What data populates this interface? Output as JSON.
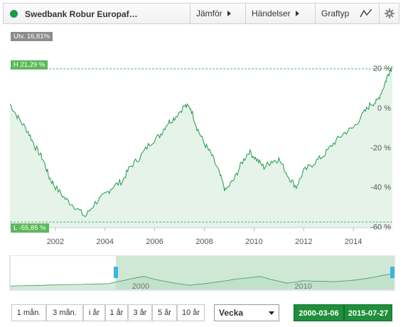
{
  "header": {
    "fund_name": "Swedbank Robur Europaf…",
    "compare_label": "Jämför",
    "events_label": "Händelser",
    "graphtype_label": "Graftyp",
    "accent_color": "#1e9a4a"
  },
  "tags": {
    "change": "Utv. 16,81%",
    "high": "H 21,29 %",
    "low": "L -55,85 %"
  },
  "chart_data": {
    "type": "area",
    "x_ticks": [
      "2002",
      "2004",
      "2006",
      "2008",
      "2010",
      "2012",
      "2014"
    ],
    "y_ticks": [
      "20 %",
      "0 %",
      "-20 %",
      "-40 %",
      "-60 %"
    ],
    "ylim": [
      -60,
      20
    ],
    "grid": false,
    "high_line": 21.29,
    "low_line": -55.85,
    "series": [
      {
        "color": "#1e9a4a",
        "x": [
          2000.17,
          2000.5,
          2000.9,
          2001.2,
          2001.5,
          2001.75,
          2002.0,
          2002.4,
          2002.8,
          2003.2,
          2003.6,
          2004.0,
          2004.3,
          2004.7,
          2005.0,
          2005.4,
          2005.8,
          2006.2,
          2006.5,
          2006.8,
          2007.2,
          2007.45,
          2007.7,
          2008.0,
          2008.3,
          2008.6,
          2008.85,
          2009.2,
          2009.5,
          2009.8,
          2010.1,
          2010.4,
          2010.7,
          2011.0,
          2011.4,
          2011.7,
          2012.0,
          2012.4,
          2012.8,
          2013.2,
          2013.6,
          2014.0,
          2014.4,
          2014.7,
          2014.95,
          2015.2,
          2015.4,
          2015.57
        ],
        "values": [
          2,
          -5,
          -12,
          -20,
          -26,
          -35,
          -40,
          -46,
          -50,
          -55,
          -48,
          -44,
          -40,
          -37,
          -30,
          -25,
          -18,
          -14,
          -8,
          -5,
          1,
          0,
          -10,
          -18,
          -24,
          -33,
          -42,
          -36,
          -28,
          -22,
          -26,
          -30,
          -27,
          -26,
          -35,
          -40,
          -32,
          -28,
          -24,
          -18,
          -13,
          -10,
          -3,
          2,
          3,
          10,
          17,
          21
        ]
      }
    ]
  },
  "navigator": {
    "labels": [
      "2000",
      "2010"
    ]
  },
  "controls": {
    "periods": [
      "1 mån.",
      "3 mån.",
      "i år",
      "1 år",
      "3 år",
      "5 år",
      "10 år"
    ],
    "interval": "Vecka",
    "date_from": "2000-03-06",
    "date_to": "2015-07-27"
  }
}
